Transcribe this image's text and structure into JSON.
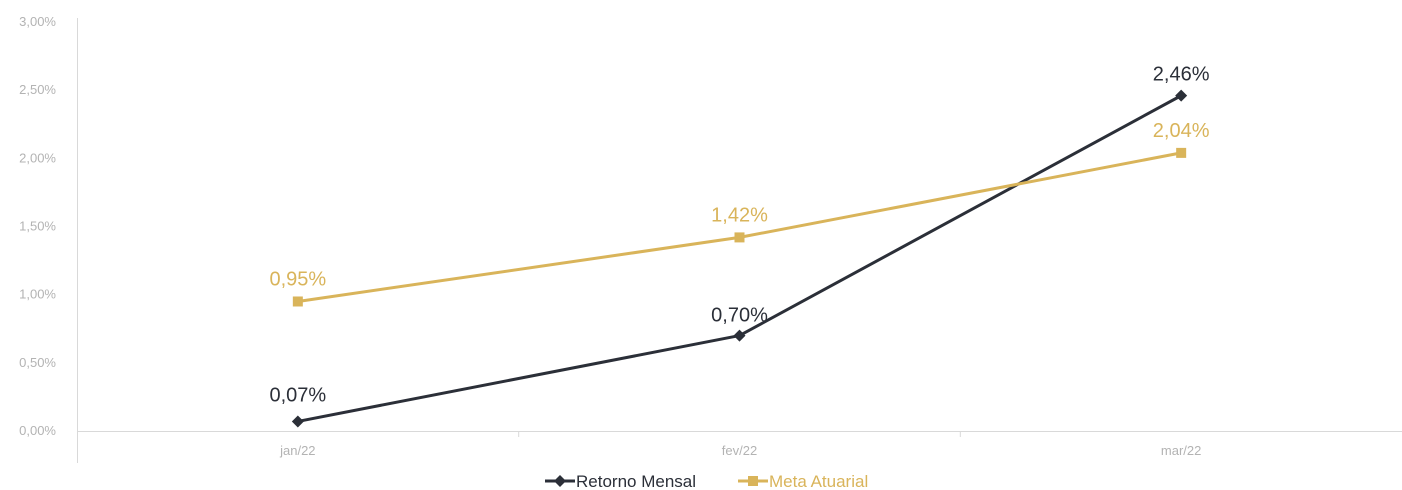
{
  "chart_data": {
    "type": "line",
    "categories": [
      "jan/22",
      "fev/22",
      "mar/22"
    ],
    "series": [
      {
        "name": "Retorno Mensal",
        "values": [
          0.07,
          0.7,
          2.46
        ],
        "labels": [
          "0,07%",
          "0,70%",
          "2,46%"
        ],
        "color": "#2b2f38",
        "marker": "diamond"
      },
      {
        "name": "Meta Atuarial",
        "values": [
          0.95,
          1.42,
          2.04
        ],
        "labels": [
          "0,95%",
          "1,42%",
          "2,04%"
        ],
        "color": "#d9b45a",
        "marker": "square"
      }
    ],
    "ylim": [
      0,
      3
    ],
    "ytick_values": [
      0,
      0.5,
      1,
      1.5,
      2,
      2.5,
      3
    ],
    "yticks": [
      "0,00%",
      "0,50%",
      "1,00%",
      "1,50%",
      "2,00%",
      "2,50%",
      "3,00%"
    ],
    "legend_position": "bottom",
    "grid": false,
    "axis_color": "#d9d9d9",
    "tick_label_color": "#b3b3b3"
  }
}
